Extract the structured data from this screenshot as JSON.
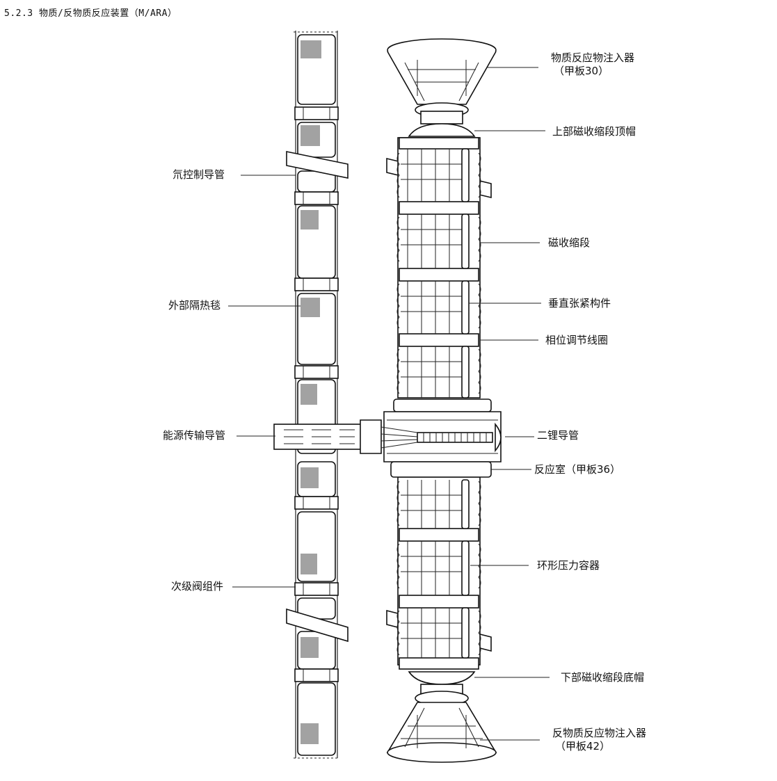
{
  "header": "5.2.3 物质/反物质反应装置（M/ARA）",
  "labels": {
    "matter_injector": "物质反应物注入器",
    "matter_injector_ref": "（甲板30）",
    "upper_cap": "上部磁收缩段顶帽",
    "constrictor": "磁收缩段",
    "vertical_tension": "垂直张紧构件",
    "phase_coil": "相位调节线圈",
    "dilithium_conduit": "二锂导管",
    "reaction_chamber": "反应室（甲板36）",
    "toroidal_vessel": "环形压力容器",
    "lower_cap": "下部磁收缩段底帽",
    "antimatter_injector": "反物质反应物注入器",
    "antimatter_injector_ref": "（甲板42）",
    "gas_conduit": "氘控制导管",
    "insulation_blanket": "外部隔热毯",
    "power_conduit": "能源传输导管",
    "secondary_valve": "次级阀组件"
  }
}
